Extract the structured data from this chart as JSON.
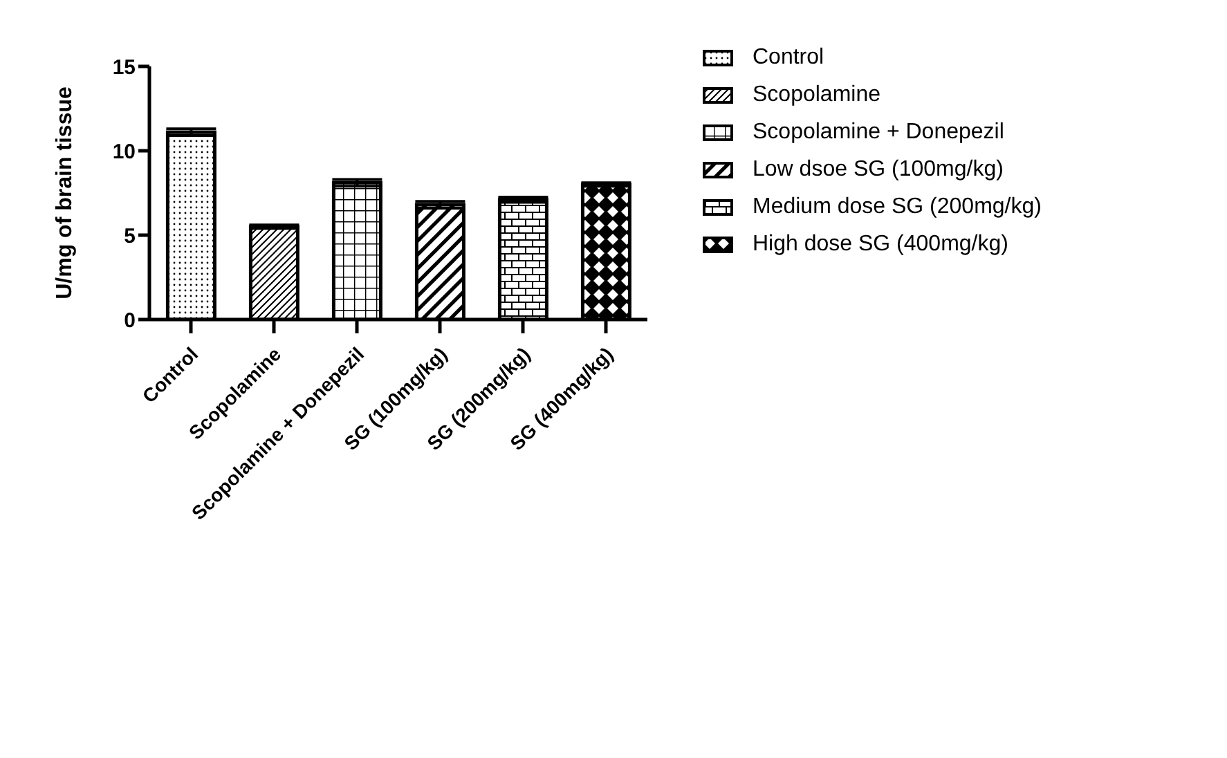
{
  "chart_data": {
    "type": "bar",
    "ylabel": "U/mg of brain tissue",
    "categories": [
      "Control",
      "Scopolamine",
      "Scopolamine + Donepezil",
      "SG (100mg/kg)",
      "SG (200mg/kg)",
      "SG (400mg/kg)"
    ],
    "stacked": true,
    "ylim": [
      0,
      15
    ],
    "yticks": [
      0,
      5,
      10,
      15
    ],
    "grid": false,
    "legend": "top right",
    "series": [
      {
        "name": "Control",
        "color": "#000000",
        "values": [
          11.1,
          null,
          null,
          null,
          null,
          null
        ],
        "errors": [
          0.2,
          null,
          null,
          null,
          null,
          null
        ]
      },
      {
        "name": "Scopolamine",
        "color": "#000000",
        "values": [
          null,
          5.5,
          null,
          null,
          null,
          null
        ],
        "errors": [
          null,
          0.1,
          null,
          null,
          null,
          null
        ]
      },
      {
        "name": "Scopolamine + Donepezil",
        "color": "#000000",
        "values": [
          null,
          null,
          8.1,
          null,
          null,
          null
        ],
        "errors": [
          null,
          null,
          0.2,
          null,
          null,
          null
        ]
      },
      {
        "name": "Low dsoe SG (100mg/kg)",
        "color": "#000000",
        "values": [
          null,
          null,
          null,
          6.8,
          null,
          null
        ],
        "errors": [
          null,
          null,
          null,
          0.2,
          null,
          null
        ]
      },
      {
        "name": "Medium dose SG (200mg/kg)",
        "color": "#000000",
        "values": [
          null,
          null,
          null,
          null,
          7.1,
          null
        ],
        "errors": [
          null,
          null,
          null,
          null,
          0.15,
          null
        ]
      },
      {
        "name": "High dose SG (400mg/kg)",
        "color": "#000000",
        "values": [
          null,
          null,
          null,
          null,
          null,
          8.0
        ],
        "errors": [
          null,
          null,
          null,
          null,
          null,
          0.1
        ]
      }
    ]
  }
}
